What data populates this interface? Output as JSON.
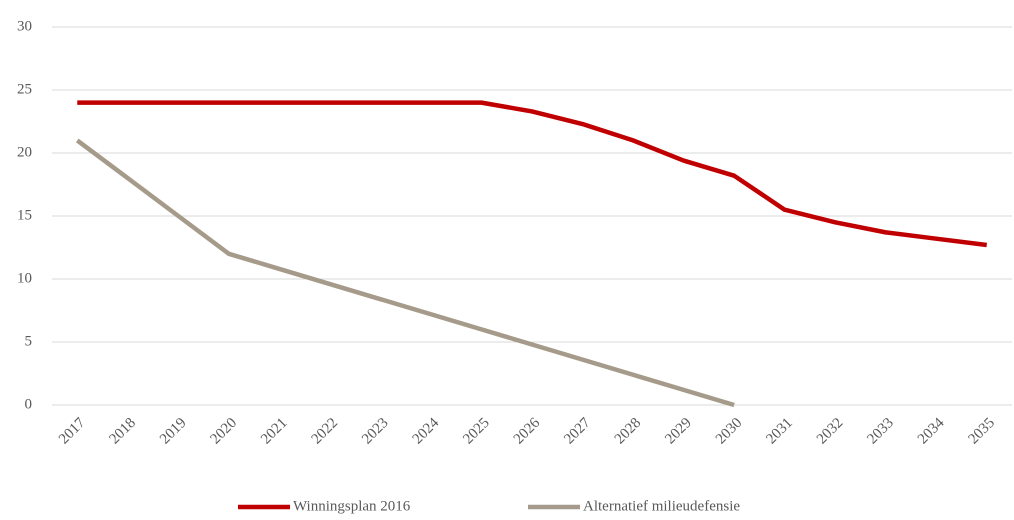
{
  "chart_data": {
    "type": "line",
    "categories": [
      "2017",
      "2018",
      "2019",
      "2020",
      "2021",
      "2022",
      "2023",
      "2024",
      "2025",
      "2026",
      "2027",
      "2028",
      "2029",
      "2030",
      "2031",
      "2032",
      "2033",
      "2034",
      "2035"
    ],
    "series": [
      {
        "name": "Winningsplan 2016",
        "color": "#c00000",
        "values": [
          24,
          24,
          24,
          24,
          24,
          24,
          24,
          24,
          24,
          23.3,
          22.3,
          21.0,
          19.4,
          18.2,
          15.5,
          14.5,
          13.7,
          13.2,
          12.7
        ]
      },
      {
        "name": "Alternatief milieudefensie",
        "color": "#a69b8a",
        "values": [
          21,
          18,
          15,
          12,
          10.8,
          9.6,
          8.4,
          7.2,
          6,
          4.8,
          3.6,
          2.4,
          1.2,
          0,
          null,
          null,
          null,
          null,
          null
        ]
      }
    ],
    "ylim": [
      0,
      30
    ],
    "yticks": [
      0,
      5,
      10,
      15,
      20,
      25,
      30
    ],
    "grid": true,
    "legend": "bottom"
  }
}
